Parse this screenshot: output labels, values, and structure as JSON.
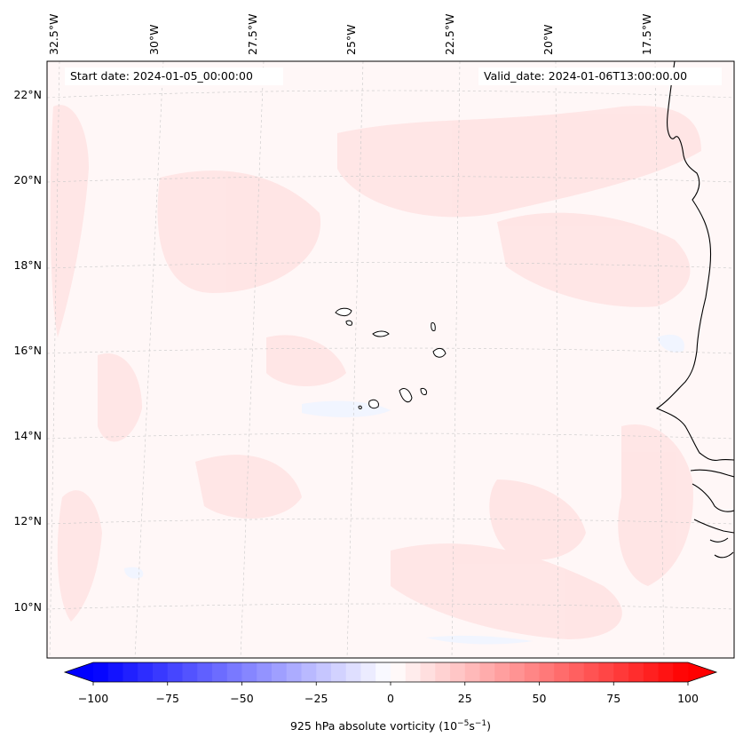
{
  "header": {
    "start_date": "Start date: 2024-01-05_00:00:00",
    "valid_date": "Valid_date: 2024-01-06T13:00:00.00"
  },
  "axes": {
    "longitude_labels": [
      "32.5°W",
      "30°W",
      "27.5°W",
      "25°W",
      "22.5°W",
      "20°W",
      "17.5°W"
    ],
    "latitude_labels": [
      "22°N",
      "20°N",
      "18°N",
      "16°N",
      "14°N",
      "12°N",
      "10°N"
    ],
    "gridlines": true
  },
  "colorbar": {
    "label": "925 hPa absolute vorticity (10",
    "label_exp1": "−5",
    "label_mid": "s",
    "label_exp2": "−1",
    "label_end": ")",
    "ticks": [
      "−100",
      "−75",
      "−50",
      "−25",
      "0",
      "25",
      "50",
      "75",
      "100"
    ],
    "range": [
      -100,
      100
    ],
    "step": 5,
    "extend": "both",
    "colormap": "bwr",
    "low_color": "#0000ff",
    "mid_color": "#ffffff",
    "high_color": "#ff0000"
  },
  "field": {
    "background_color": "#fff7f7",
    "shading_color": "#ffe5e5",
    "coast_color": "#000000"
  }
}
